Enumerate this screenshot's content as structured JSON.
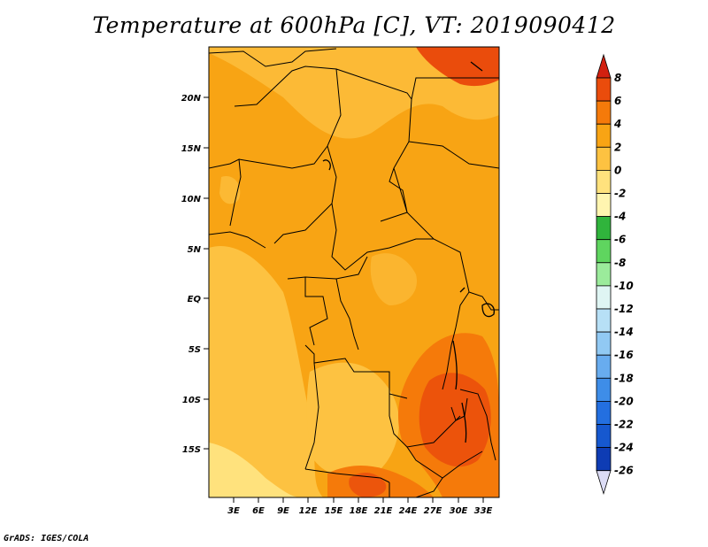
{
  "title": "Temperature at 600hPa [C], VT: 2019090412",
  "footer": "GrADS: IGES/COLA",
  "map": {
    "lat_ticks": [
      "20N",
      "15N",
      "10N",
      "5N",
      "EQ",
      "5S",
      "10S",
      "15S"
    ],
    "lon_ticks": [
      "3E",
      "6E",
      "9E",
      "12E",
      "15E",
      "18E",
      "21E",
      "24E",
      "27E",
      "30E",
      "33E"
    ]
  },
  "colorbar": {
    "levels": [
      "8",
      "6",
      "4",
      "2",
      "0",
      "-2",
      "-4",
      "-6",
      "-8",
      "-10",
      "-12",
      "-14",
      "-16",
      "-18",
      "-20",
      "-22",
      "-24",
      "-26"
    ],
    "colors": [
      "#d22010",
      "#ea4c0c",
      "#f57a0a",
      "#f8a414",
      "#fdc241",
      "#ffe27d",
      "#fff5b0",
      "#30b43c",
      "#5fd55f",
      "#9beb9b",
      "#dff5f3",
      "#b7e0f6",
      "#91c9f3",
      "#68acef",
      "#3e8de8",
      "#236fe0",
      "#1658cf",
      "#0e3cb4",
      "#081e7a",
      "#dcdcf5"
    ]
  }
}
